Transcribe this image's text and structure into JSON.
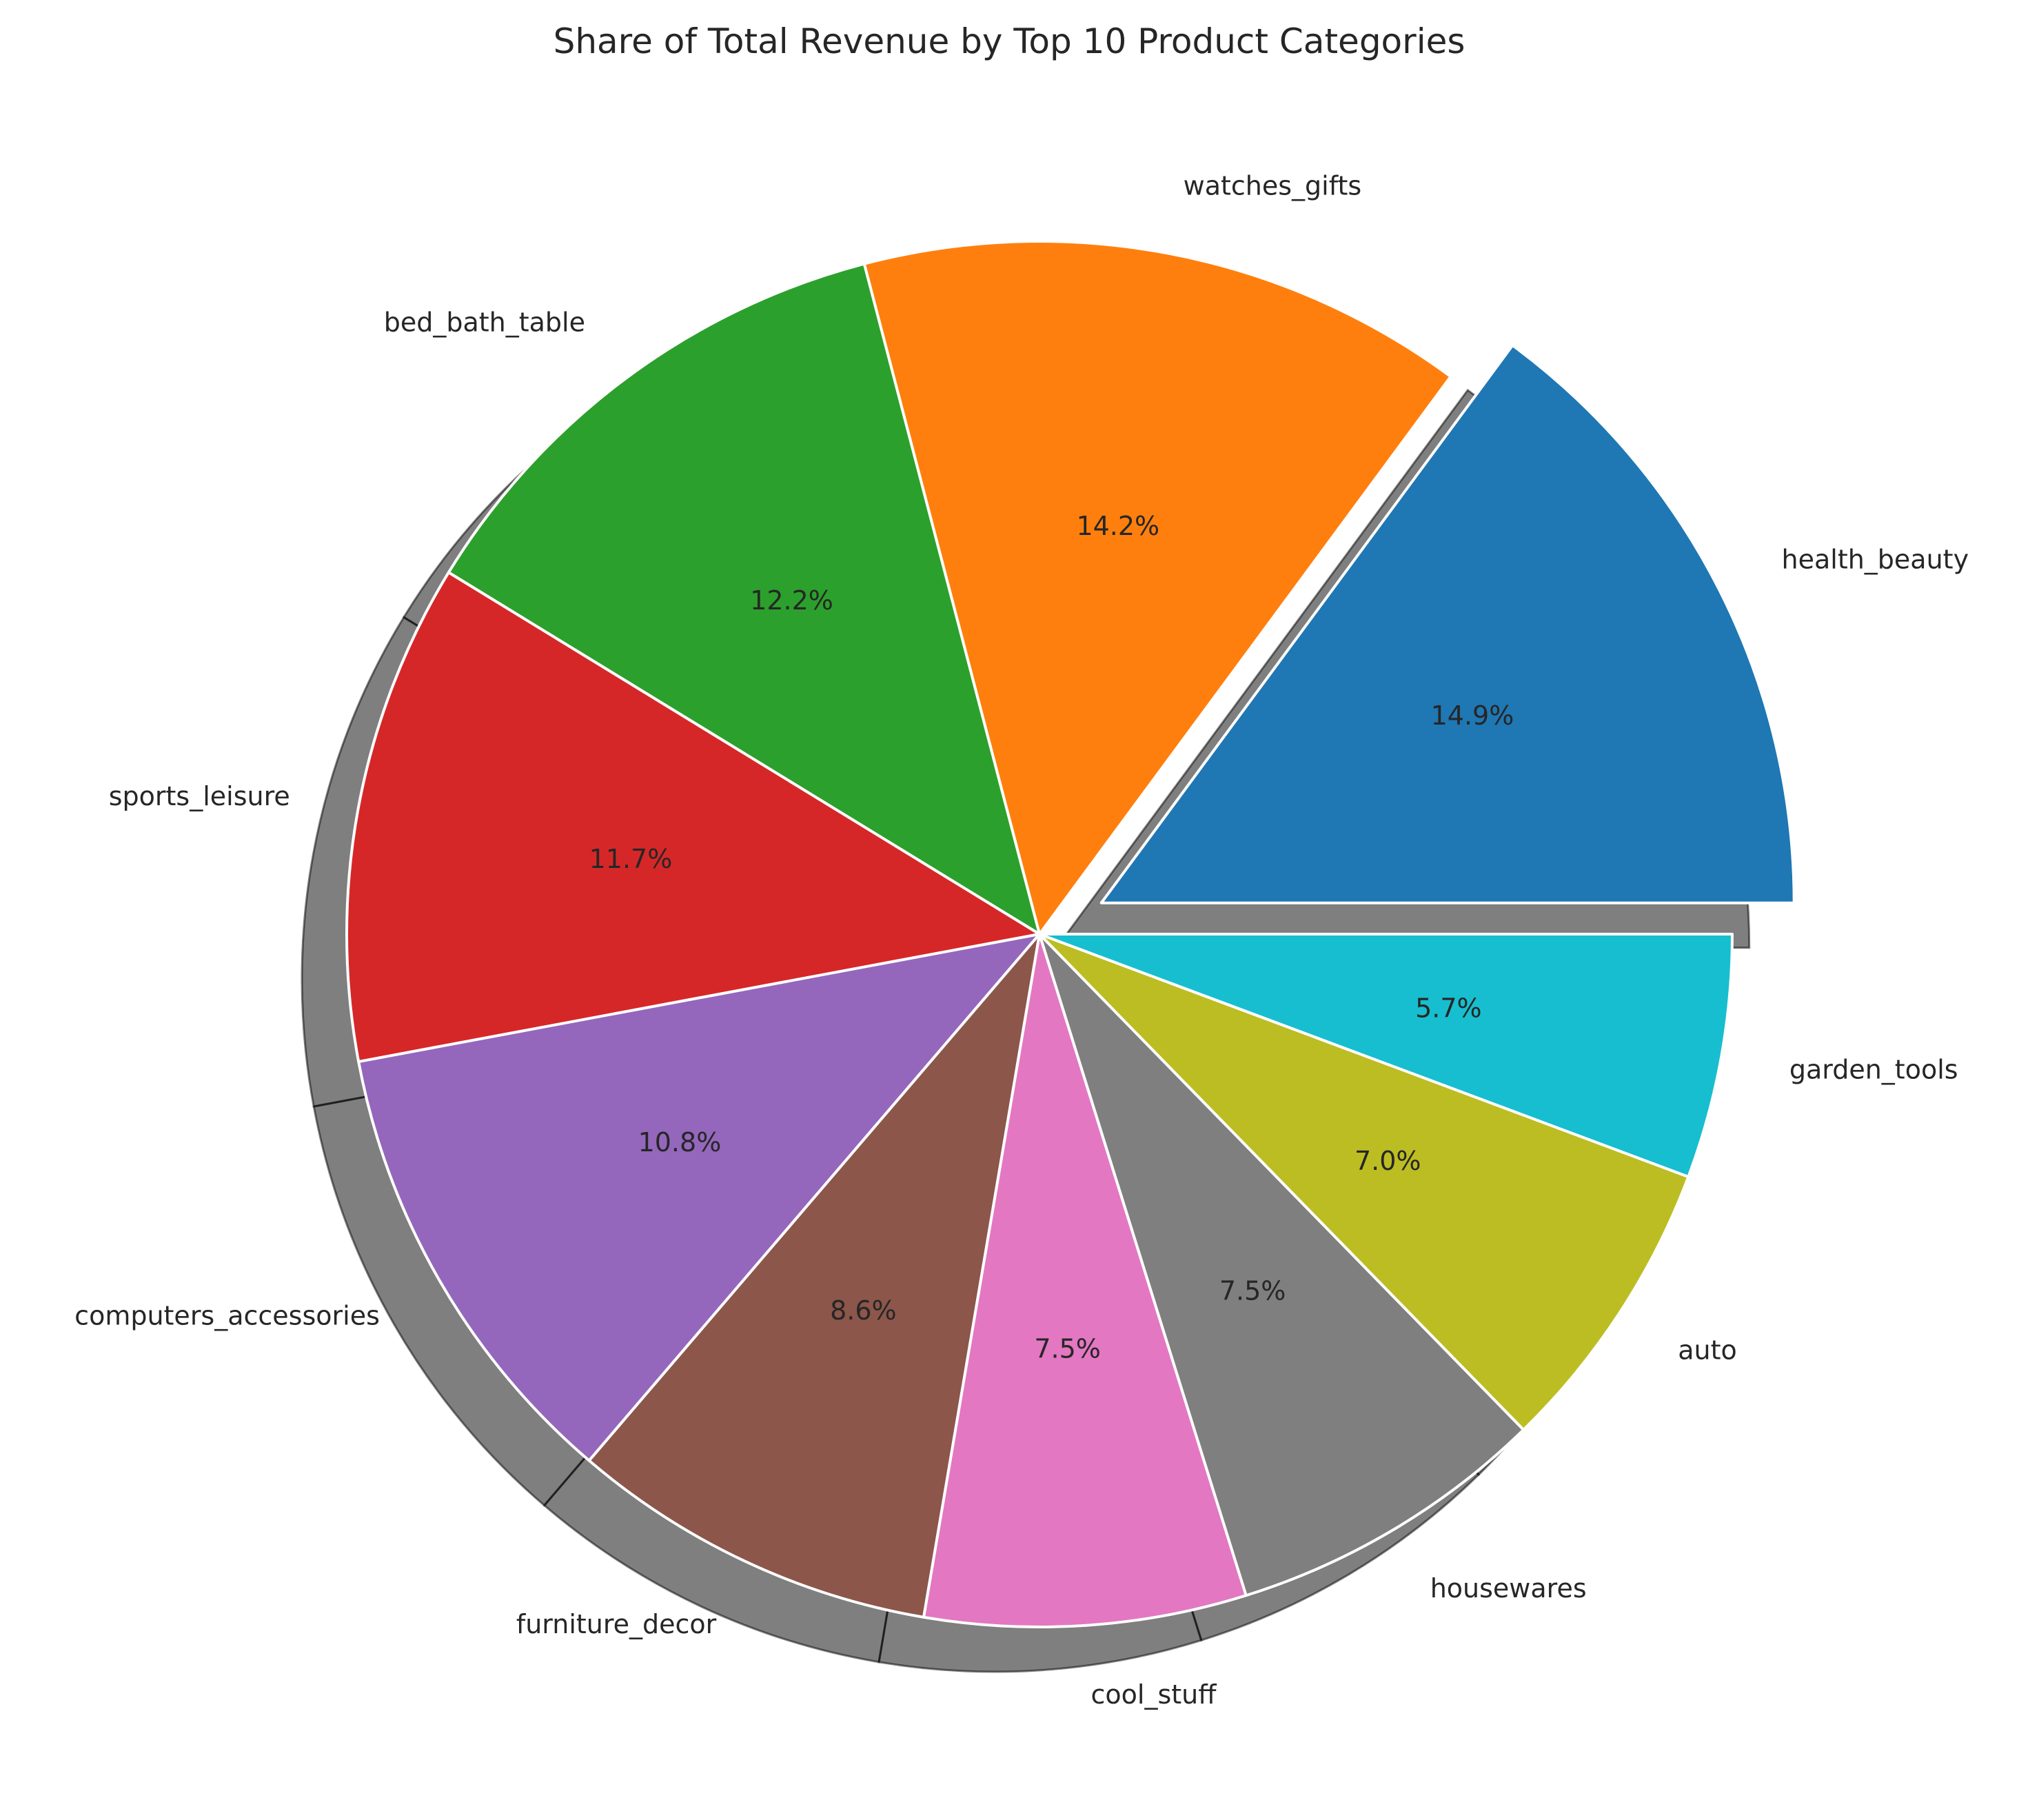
{
  "chart_data": {
    "type": "pie",
    "title": "Share of Total Revenue by Top 10 Product Categories",
    "start_angle_deg": 0,
    "direction": "counterclockwise",
    "shadow": true,
    "explode": [
      "health_beauty"
    ],
    "slices": [
      {
        "label": "health_beauty",
        "pct": 14.9,
        "pct_label": "14.9%",
        "color": "#1f77b4"
      },
      {
        "label": "watches_gifts",
        "pct": 14.2,
        "pct_label": "14.2%",
        "color": "#ff7f0e"
      },
      {
        "label": "bed_bath_table",
        "pct": 12.2,
        "pct_label": "12.2%",
        "color": "#2ca02c"
      },
      {
        "label": "sports_leisure",
        "pct": 11.7,
        "pct_label": "11.7%",
        "color": "#d62728"
      },
      {
        "label": "computers_accessories",
        "pct": 10.8,
        "pct_label": "10.8%",
        "color": "#9467bd"
      },
      {
        "label": "furniture_decor",
        "pct": 8.6,
        "pct_label": "8.6%",
        "color": "#8c564b"
      },
      {
        "label": "cool_stuff",
        "pct": 7.5,
        "pct_label": "7.5%",
        "color": "#e377c2"
      },
      {
        "label": "housewares",
        "pct": 7.5,
        "pct_label": "7.5%",
        "color": "#7f7f7f"
      },
      {
        "label": "auto",
        "pct": 7.0,
        "pct_label": "7.0%",
        "color": "#bcbd22"
      },
      {
        "label": "garden_tools",
        "pct": 5.7,
        "pct_label": "5.7%",
        "color": "#17becf"
      }
    ]
  }
}
